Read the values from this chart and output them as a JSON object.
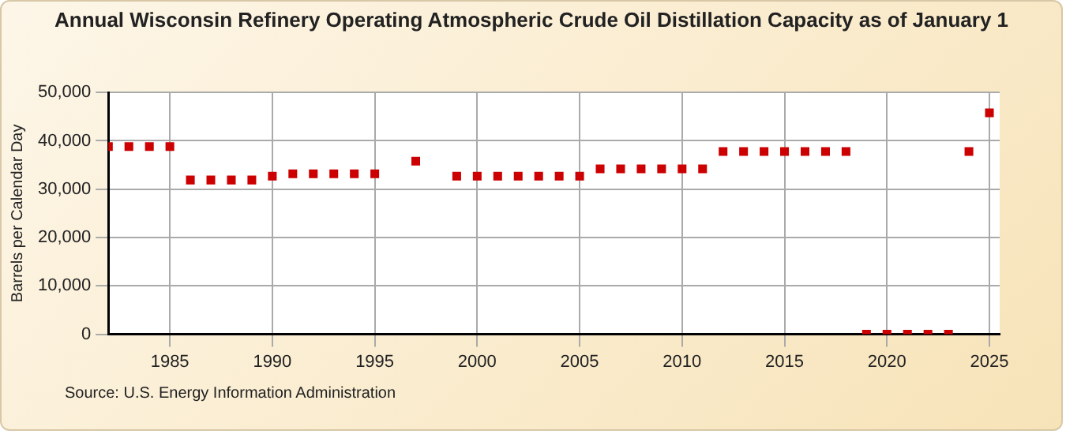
{
  "chart_data": {
    "type": "scatter",
    "title": "Annual Wisconsin Refinery Operating Atmospheric Crude Oil Distillation Capacity as of January 1",
    "ylabel": "Barrels per Calendar Day",
    "annotations": [
      "Source: U.S. Energy Information Administration"
    ],
    "x": [
      1982,
      1983,
      1984,
      1985,
      1986,
      1987,
      1988,
      1989,
      1990,
      1991,
      1992,
      1993,
      1994,
      1995,
      1997,
      1999,
      2000,
      2001,
      2002,
      2003,
      2004,
      2005,
      2006,
      2007,
      2008,
      2009,
      2010,
      2011,
      2012,
      2013,
      2014,
      2015,
      2016,
      2017,
      2018,
      2019,
      2020,
      2021,
      2022,
      2023,
      2024,
      2025
    ],
    "series": [
      {
        "color": "#cc0000",
        "values": [
          38800,
          38800,
          38800,
          38800,
          31900,
          31900,
          31900,
          31900,
          32700,
          33200,
          33200,
          33200,
          33200,
          33200,
          35800,
          32700,
          32700,
          32700,
          32700,
          32700,
          32700,
          32700,
          34200,
          34200,
          34200,
          34200,
          34200,
          34200,
          37800,
          37800,
          37800,
          37800,
          37800,
          37800,
          37800,
          0,
          0,
          0,
          0,
          0,
          37800,
          45800
        ]
      }
    ],
    "xlim": [
      1982,
      2025.5
    ],
    "xticks": [
      1985,
      1990,
      1995,
      2000,
      2005,
      2010,
      2015,
      2020,
      2025
    ],
    "ylim": [
      0,
      50000
    ],
    "yticks": [
      {
        "value": 0,
        "label": "0"
      },
      {
        "value": 10000,
        "label": "10,000"
      },
      {
        "value": 20000,
        "label": "20,000"
      },
      {
        "value": 30000,
        "label": "30,000"
      },
      {
        "value": 40000,
        "label": "40,000"
      },
      {
        "value": 50000,
        "label": "50,000"
      }
    ],
    "grid": true,
    "legend": false,
    "marker": "square"
  }
}
